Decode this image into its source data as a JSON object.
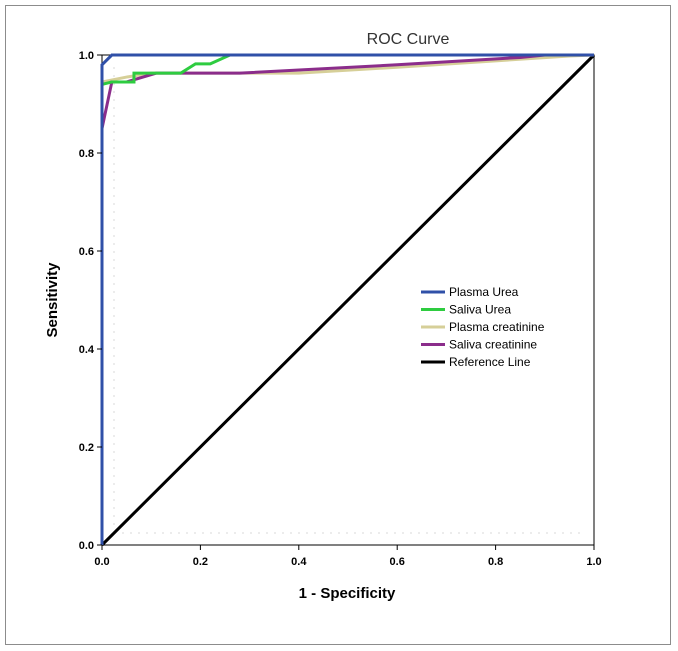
{
  "chart_data": {
    "type": "line",
    "title": "ROC Curve",
    "xlabel": "1 - Specificity",
    "ylabel": "Sensitivity",
    "xlim": [
      0.0,
      1.0
    ],
    "ylim": [
      0.0,
      1.0
    ],
    "x_ticks": [
      "0.0",
      "0.2",
      "0.4",
      "0.6",
      "0.8",
      "1.0"
    ],
    "y_ticks": [
      "0.0",
      "0.2",
      "0.4",
      "0.6",
      "0.8",
      "1.0"
    ],
    "grid": false,
    "legend_position": "center-right",
    "series": [
      {
        "name": "Plasma Urea",
        "color": "#3050a8",
        "points": [
          [
            0.0,
            0.0
          ],
          [
            0.0,
            0.98
          ],
          [
            0.02,
            1.0
          ],
          [
            1.0,
            1.0
          ]
        ]
      },
      {
        "name": "Saliva Urea",
        "color": "#2ecc40",
        "points": [
          [
            0.0,
            0.0
          ],
          [
            0.0,
            0.94
          ],
          [
            0.02,
            0.945
          ],
          [
            0.065,
            0.945
          ],
          [
            0.065,
            0.963
          ],
          [
            0.16,
            0.963
          ],
          [
            0.19,
            0.982
          ],
          [
            0.22,
            0.982
          ],
          [
            0.26,
            1.0
          ],
          [
            1.0,
            1.0
          ]
        ]
      },
      {
        "name": "Plasma creatinine",
        "color": "#d6cf98",
        "points": [
          [
            0.0,
            0.0
          ],
          [
            0.0,
            0.945
          ],
          [
            0.05,
            0.955
          ],
          [
            0.1,
            0.963
          ],
          [
            0.4,
            0.963
          ],
          [
            0.6,
            0.975
          ],
          [
            0.8,
            0.988
          ],
          [
            0.95,
            0.998
          ],
          [
            1.0,
            1.0
          ]
        ]
      },
      {
        "name": "Saliva creatinine",
        "color": "#8b2d8b",
        "points": [
          [
            0.0,
            0.0
          ],
          [
            0.0,
            0.85
          ],
          [
            0.02,
            0.945
          ],
          [
            0.05,
            0.945
          ],
          [
            0.11,
            0.963
          ],
          [
            0.28,
            0.963
          ],
          [
            0.6,
            0.98
          ],
          [
            0.85,
            0.995
          ],
          [
            0.9,
            1.0
          ],
          [
            1.0,
            1.0
          ]
        ]
      },
      {
        "name": "Reference Line",
        "color": "#000000",
        "points": [
          [
            0.0,
            0.0
          ],
          [
            1.0,
            1.0
          ]
        ]
      }
    ]
  }
}
